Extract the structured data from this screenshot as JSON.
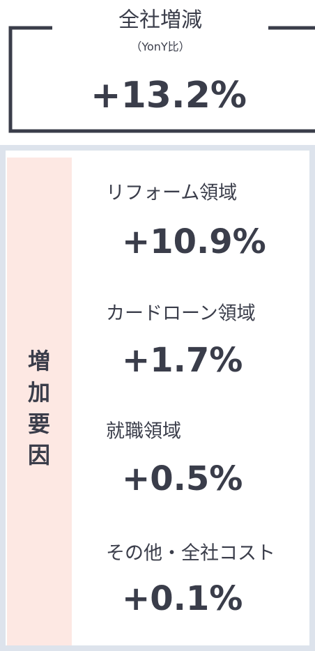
{
  "header": {
    "title": "全社増減",
    "subtitle": "（YonY比）",
    "value": "+13.2%"
  },
  "factors": {
    "label": "増加要因",
    "items": [
      {
        "label": "リフォーム領域",
        "value": "+10.9%"
      },
      {
        "label": "カードローン領域",
        "value": "+1.7%"
      },
      {
        "label": "就職領域",
        "value": "+0.5%"
      },
      {
        "label": "その他・全社コスト",
        "value": "+0.1%"
      }
    ]
  }
}
